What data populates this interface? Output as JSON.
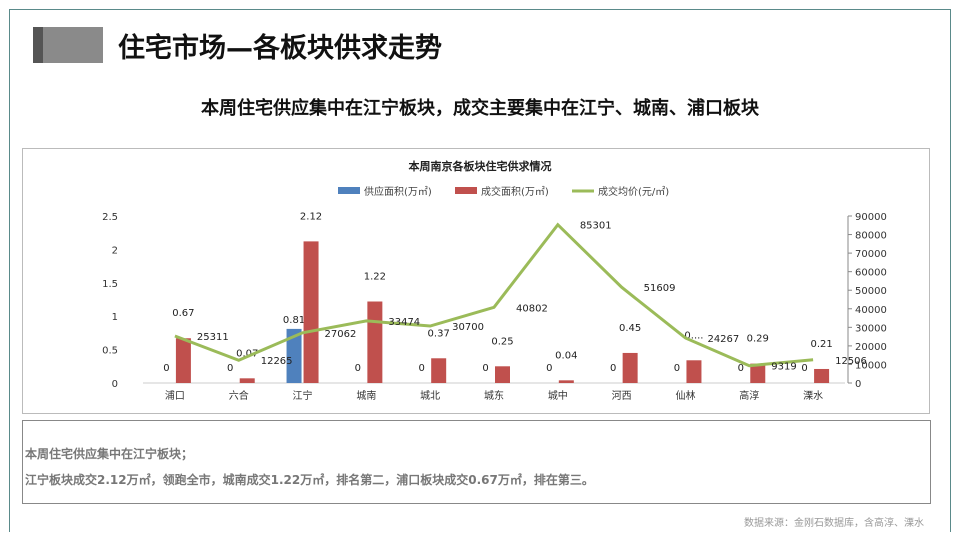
{
  "header": {
    "title": "住宅市场—各板块供求走势",
    "subtitle": "本周住宅供应集中在江宁板块，成交主要集中在江宁、城南、浦口板块"
  },
  "chart_data": {
    "type": "bar+line",
    "title": "本周南京各板块住宅供求情况",
    "categories": [
      "浦口",
      "六合",
      "江宁",
      "城南",
      "城北",
      "城东",
      "城中",
      "河西",
      "仙林",
      "高淳",
      "溧水"
    ],
    "series": [
      {
        "name": "供应面积(万㎡)",
        "type": "bar",
        "axis": "left",
        "color": "#4f81bd",
        "values": [
          0,
          0,
          0.81,
          0,
          0,
          0,
          0,
          0,
          0,
          0,
          0
        ]
      },
      {
        "name": "成交面积(万㎡)",
        "type": "bar",
        "axis": "left",
        "color": "#c0504d",
        "values": [
          0.67,
          0.07,
          2.12,
          1.22,
          0.37,
          0.25,
          0.04,
          0.45,
          0.34,
          0.29,
          0.21
        ],
        "labels": [
          "0.67",
          "0.07",
          "2.12",
          "1.22",
          "0.37",
          "0.25",
          "0.04",
          "0.45",
          "0....",
          "0.29",
          "0.21"
        ]
      },
      {
        "name": "成交均价(元/㎡)",
        "type": "line",
        "axis": "right",
        "color": "#9bbb59",
        "values": [
          25311,
          12265,
          27062,
          33474,
          30700,
          40802,
          85301,
          51609,
          24267,
          9319,
          12506
        ]
      }
    ],
    "ylim_left": [
      0,
      2.5
    ],
    "yticks_left": [
      "0",
      "0.5",
      "1",
      "1.5",
      "2",
      "2.5"
    ],
    "ylim_right": [
      0,
      90000
    ],
    "yticks_right": [
      "0",
      "10000",
      "20000",
      "30000",
      "40000",
      "50000",
      "60000",
      "70000",
      "80000",
      "90000"
    ],
    "legend": "top"
  },
  "notes": {
    "line1": "本周住宅供应集中在江宁板块；",
    "line2": "江宁板块成交2.12万㎡，领跑全市，城南成交1.22万㎡，排名第二，浦口板块成交0.67万㎡，排在第三。"
  },
  "source": "数据来源：金刚石数据库，含高淳、溧水"
}
